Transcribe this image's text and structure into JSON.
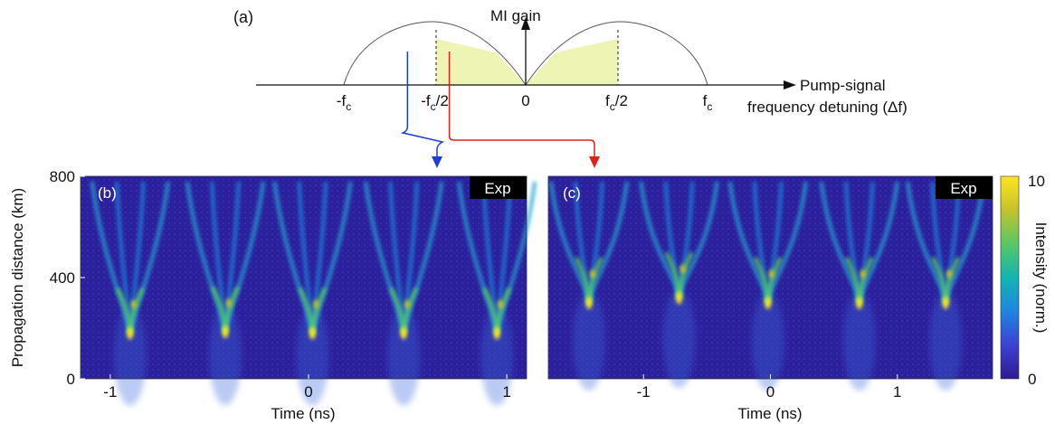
{
  "chart_data": [
    {
      "type": "area",
      "panel_label": "(a)",
      "ylabel": "MI gain",
      "xlabel_line1": "Pump-signal",
      "xlabel_line2": "frequency detuning (Δf)",
      "xticks": [
        "-f",
        "-f",
        "0",
        "f",
        "f"
      ],
      "xtick_subscripts": [
        "c",
        "c",
        "",
        "c",
        "c"
      ],
      "xtick_suffix": [
        "",
        "/2",
        "",
        "/2",
        ""
      ],
      "x_values": [
        -1,
        -0.5,
        0,
        0.5,
        1
      ],
      "curve": "MI gain lobes, zero at 0 and ±fc, maximum at ±fc/√2",
      "shaded_band": [
        -0.5,
        0.5
      ],
      "markers": [
        {
          "x": -0.65,
          "color": "#1f3fcf",
          "target": "b"
        },
        {
          "x": -0.42,
          "color": "#e0201b",
          "target": "c"
        }
      ],
      "colors": {
        "fill": "#eef4b4",
        "outline": "#555555"
      }
    },
    {
      "type": "heatmap",
      "panel_label": "(b)",
      "badge": "Exp",
      "xlabel": "Time (ns)",
      "ylabel": "Propagation distance (km)",
      "xticks": [
        "-1",
        "0",
        "1"
      ],
      "xtick_values": [
        -1,
        0,
        1
      ],
      "yticks": [
        "0",
        "400",
        "800"
      ],
      "ytick_values": [
        0,
        400,
        800
      ],
      "xlim": [
        -1.15,
        1.1
      ],
      "ylim": [
        0,
        800
      ],
      "focus_points": [
        {
          "t": -0.9,
          "z": 180
        },
        {
          "t": -0.42,
          "z": 185
        },
        {
          "t": 0.02,
          "z": 180
        },
        {
          "t": 0.48,
          "z": 180
        },
        {
          "t": 0.95,
          "z": 180
        }
      ]
    },
    {
      "type": "heatmap",
      "panel_label": "(c)",
      "badge": "Exp",
      "xlabel": "Time (ns)",
      "xticks": [
        "-1",
        "0",
        "1"
      ],
      "xtick_values": [
        -1,
        0,
        1
      ],
      "xlim": [
        -1.75,
        1.75
      ],
      "ylim": [
        0,
        800
      ],
      "focus_points": [
        {
          "t": -1.43,
          "z": 300
        },
        {
          "t": -0.72,
          "z": 320
        },
        {
          "t": -0.02,
          "z": 300
        },
        {
          "t": 0.7,
          "z": 300
        },
        {
          "t": 1.38,
          "z": 300
        }
      ]
    }
  ],
  "colorbar": {
    "label": "Intensity (norm.)",
    "ticks": [
      "0",
      "10"
    ],
    "tick_values": [
      0,
      10
    ],
    "colormap": [
      "#2f1a8f",
      "#3c43d6",
      "#1f86e0",
      "#12b5b3",
      "#55c768",
      "#c7c42a",
      "#fde51f"
    ]
  }
}
